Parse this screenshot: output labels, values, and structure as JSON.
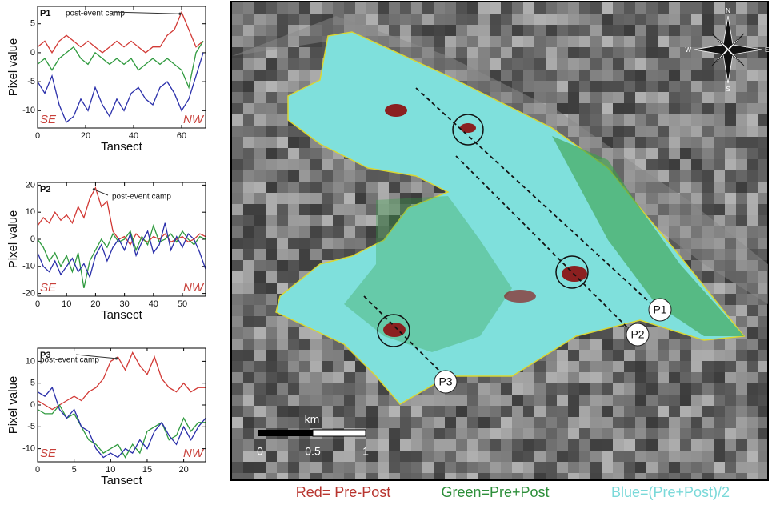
{
  "chart_data": [
    {
      "type": "line",
      "title": "P1",
      "annotation": "post-event camp",
      "xlabel": "Tansect",
      "ylabel": "Pixel value",
      "corner_left": "SE",
      "corner_right": "NW",
      "x": [
        0,
        3,
        6,
        9,
        12,
        15,
        18,
        21,
        24,
        27,
        30,
        33,
        36,
        39,
        42,
        45,
        48,
        51,
        54,
        57,
        60,
        63,
        66,
        69
      ],
      "xlim": [
        0,
        70
      ],
      "xticks": [
        0,
        20,
        40,
        60
      ],
      "ylim": [
        -13,
        8
      ],
      "yticks": [
        -10,
        -5,
        0,
        5
      ],
      "series": [
        {
          "color": "#d23a36",
          "values": [
            1,
            2,
            0,
            2,
            3,
            2,
            1,
            2,
            1,
            0,
            1,
            2,
            1,
            2,
            1,
            0,
            1,
            1,
            3,
            4,
            7,
            4,
            1,
            2
          ]
        },
        {
          "color": "#2f9a3e",
          "values": [
            -2,
            -1,
            -3,
            -1,
            0,
            1,
            -1,
            -2,
            0,
            -1,
            -2,
            -1,
            -2,
            -1,
            -3,
            -2,
            -1,
            -2,
            -1,
            -2,
            -3,
            -6,
            0,
            2
          ]
        },
        {
          "color": "#2a2faa",
          "values": [
            -5,
            -7,
            -4,
            -9,
            -12,
            -11,
            -8,
            -10,
            -6,
            -9,
            -11,
            -8,
            -10,
            -7,
            -6,
            -8,
            -9,
            -6,
            -5,
            -7,
            -10,
            -8,
            -4,
            0
          ]
        }
      ]
    },
    {
      "type": "line",
      "title": "P2",
      "annotation": "post-event camp",
      "xlabel": "Tansect",
      "ylabel": "Pixel value",
      "corner_left": "SE",
      "corner_right": "NW",
      "x": [
        0,
        2,
        4,
        6,
        8,
        10,
        12,
        14,
        16,
        18,
        20,
        22,
        24,
        26,
        28,
        30,
        32,
        34,
        36,
        38,
        40,
        42,
        44,
        46,
        48,
        50,
        52,
        54,
        56,
        58
      ],
      "xlim": [
        0,
        58
      ],
      "xticks": [
        0,
        10,
        20,
        30,
        40,
        50
      ],
      "ylim": [
        -21,
        21
      ],
      "yticks": [
        -20,
        -10,
        0,
        10,
        20
      ],
      "series": [
        {
          "color": "#d23a36",
          "values": [
            5,
            8,
            6,
            10,
            7,
            9,
            6,
            12,
            8,
            15,
            19,
            12,
            14,
            3,
            0,
            1,
            -2,
            2,
            0,
            -1,
            1,
            0,
            2,
            -1,
            0,
            1,
            -1,
            0,
            2,
            1
          ]
        },
        {
          "color": "#2f9a3e",
          "values": [
            0,
            -3,
            -8,
            -5,
            -10,
            -6,
            -12,
            -5,
            -18,
            -8,
            -4,
            0,
            -3,
            2,
            -1,
            0,
            3,
            -4,
            1,
            -2,
            5,
            -1,
            0,
            2,
            -1,
            3,
            0,
            -2,
            1,
            0
          ]
        },
        {
          "color": "#2a2faa",
          "values": [
            -5,
            -10,
            -12,
            -8,
            -13,
            -10,
            -7,
            -12,
            -9,
            -14,
            -6,
            -2,
            -8,
            -3,
            0,
            -4,
            2,
            -6,
            -1,
            3,
            -5,
            -2,
            6,
            -4,
            1,
            -3,
            2,
            0,
            -5,
            -11
          ]
        }
      ]
    },
    {
      "type": "line",
      "title": "P3",
      "annotation": "post-event camp",
      "xlabel": "Tansect",
      "ylabel": "Pixel value",
      "corner_left": "SE",
      "corner_right": "NW",
      "x": [
        0,
        1,
        2,
        3,
        4,
        5,
        6,
        7,
        8,
        9,
        10,
        11,
        12,
        13,
        14,
        15,
        16,
        17,
        18,
        19,
        20,
        21,
        22,
        23
      ],
      "xlim": [
        0,
        23
      ],
      "xticks": [
        0,
        5,
        10,
        15,
        20
      ],
      "ylim": [
        -13,
        13
      ],
      "yticks": [
        -10,
        -5,
        0,
        5,
        10
      ],
      "series": [
        {
          "color": "#d23a36",
          "values": [
            1,
            0,
            -1,
            0,
            1,
            2,
            1,
            3,
            4,
            6,
            10,
            11,
            8,
            12,
            9,
            7,
            11,
            6,
            4,
            3,
            5,
            3,
            4,
            4
          ]
        },
        {
          "color": "#2f9a3e",
          "values": [
            -1,
            -2,
            -2,
            0,
            -3,
            -2,
            -5,
            -8,
            -9,
            -11,
            -10,
            -9,
            -12,
            -9,
            -11,
            -6,
            -5,
            -4,
            -8,
            -7,
            -3,
            -6,
            -4,
            -4
          ]
        },
        {
          "color": "#2a2faa",
          "values": [
            3,
            2,
            4,
            -1,
            -3,
            -1,
            -5,
            -6,
            -10,
            -12,
            -11,
            -12,
            -10,
            -11,
            -8,
            -10,
            -6,
            -4,
            -7,
            -9,
            -5,
            -8,
            -5,
            -3
          ]
        }
      ]
    }
  ],
  "map": {
    "profiles": [
      "P1",
      "P2",
      "P3"
    ],
    "scale_unit": "km",
    "scale_ticks": [
      "0",
      "0.5",
      "1"
    ],
    "compass": [
      "N",
      "E",
      "S",
      "W"
    ]
  },
  "caption": [
    "Red= Pre-Post",
    "Green=Pre+Post",
    "Blue=(Pre+Post)/2"
  ]
}
